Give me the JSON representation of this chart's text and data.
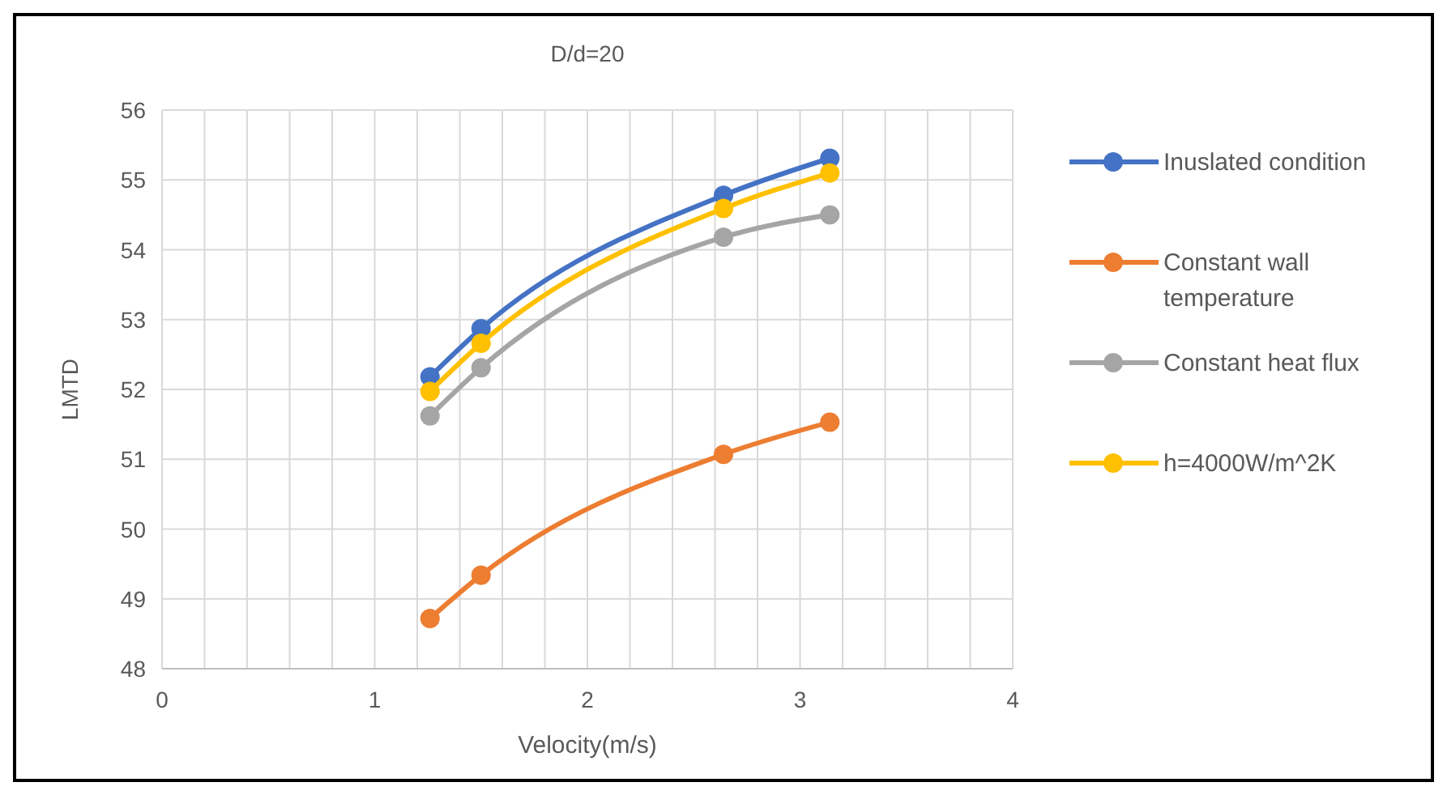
{
  "chart_data": {
    "type": "line",
    "title": "D/d=20",
    "xlabel": "Velocity(m/s)",
    "ylabel": "LMTD",
    "xlim": [
      0,
      4
    ],
    "xticks": [
      0,
      {
        "value": 0.2,
        "label": null
      },
      {
        "value": 0.4,
        "label": null
      },
      {
        "value": 0.6,
        "label": null
      },
      {
        "value": 0.8,
        "label": null
      },
      1,
      {
        "value": 1.2,
        "label": null
      },
      {
        "value": 1.4,
        "label": null
      },
      {
        "value": 1.6,
        "label": null
      },
      {
        "value": 1.8,
        "label": null
      },
      2,
      {
        "value": 2.2,
        "label": null
      },
      {
        "value": 2.4,
        "label": null
      },
      {
        "value": 2.6,
        "label": null
      },
      {
        "value": 2.8,
        "label": null
      },
      3,
      {
        "value": 3.2,
        "label": null
      },
      {
        "value": 3.4,
        "label": null
      },
      {
        "value": 3.6,
        "label": null
      },
      {
        "value": 3.8,
        "label": null
      },
      4
    ],
    "ylim": [
      48,
      56
    ],
    "yticks": [
      48,
      49,
      50,
      51,
      52,
      53,
      54,
      55,
      56
    ],
    "grid": true,
    "legend": "right",
    "marker": "circle",
    "x": [
      1.26,
      1.5,
      2.64,
      3.14
    ],
    "series": [
      {
        "name": "Inuslated condition",
        "color": "#4472c4",
        "values": [
          52.18,
          52.87,
          54.78,
          55.31
        ]
      },
      {
        "name": "Constant wall temperature",
        "color": "#ed7d31",
        "values": [
          48.72,
          49.34,
          51.07,
          51.53
        ]
      },
      {
        "name": "Constant heat flux",
        "color": "#a5a5a5",
        "values": [
          51.62,
          52.31,
          54.18,
          54.5
        ]
      },
      {
        "name": "h=4000W/m^2K",
        "color": "#ffc000",
        "values": [
          51.97,
          52.66,
          54.59,
          55.1
        ]
      }
    ]
  }
}
